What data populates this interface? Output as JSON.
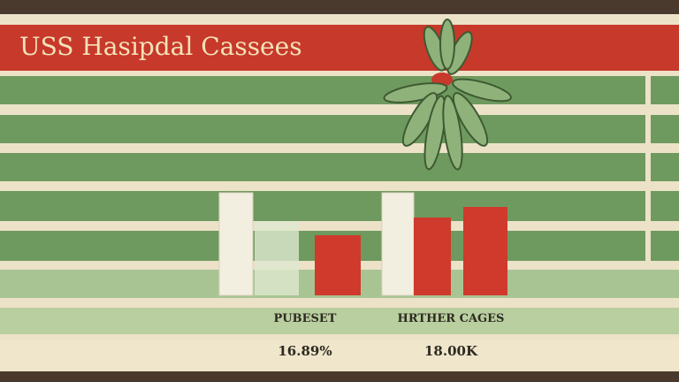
{
  "header": {
    "title": "USS Hasipdal Cassees"
  },
  "table": {
    "columns": [
      "PUBESET",
      "HRTHER CAGES"
    ],
    "values": [
      "16.89%",
      "18.00K"
    ]
  }
}
